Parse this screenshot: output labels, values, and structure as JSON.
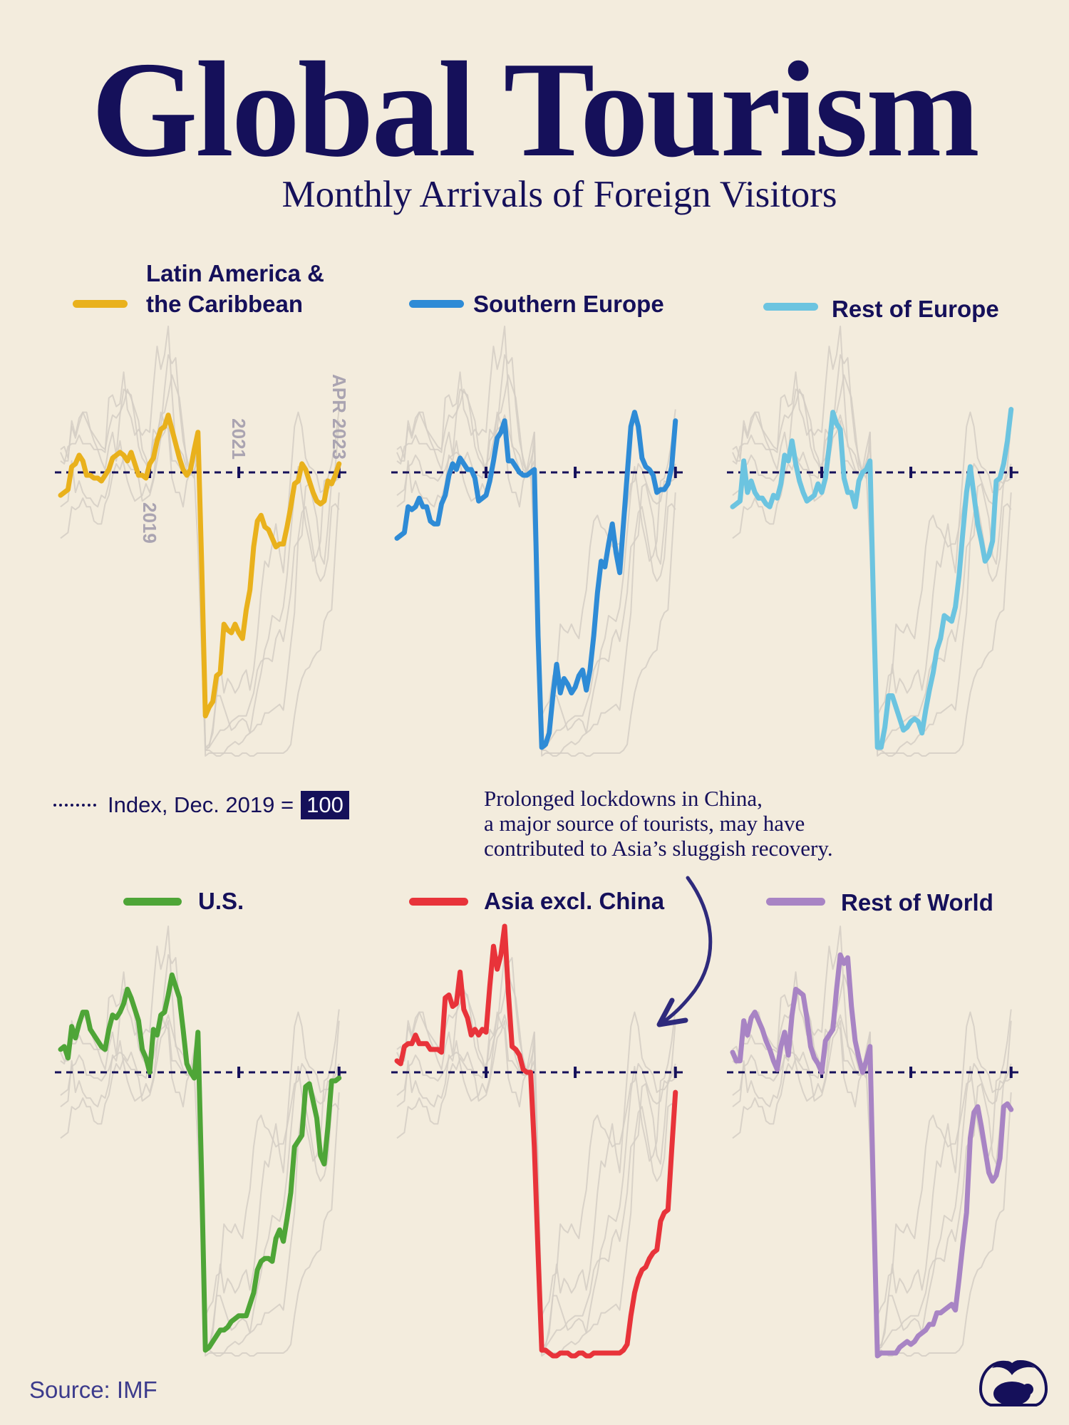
{
  "header": {
    "title": "Global Tourism",
    "subtitle": "Monthly Arrivals of Foreign Visitors"
  },
  "index_note": {
    "label": "Index, Dec. 2019 =",
    "value": "100"
  },
  "annotation": {
    "lines": [
      "Prolonged lockdowns in China,",
      "a major source of tourists, may have",
      "contributed to Asia’s sluggish recovery."
    ]
  },
  "source": "Source: IMF",
  "colors": {
    "background": "#f3ecdd",
    "ink": "#15105a",
    "context_lines": "#d3cec4"
  },
  "chart_data": {
    "type": "line",
    "layout": "small-multiples-2x3",
    "baseline": 100,
    "baseline_style": "dashed",
    "ylim": [
      0,
      155
    ],
    "tick_labels": [
      "2019",
      "2021",
      "APR 2023"
    ],
    "tick_dates": [
      "2019-01",
      "2021-01",
      "2023-04"
    ],
    "grid": false,
    "x": [
      "2017-01",
      "2017-02",
      "2017-03",
      "2017-04",
      "2017-05",
      "2017-06",
      "2017-07",
      "2017-08",
      "2017-09",
      "2017-10",
      "2017-11",
      "2017-12",
      "2018-01",
      "2018-02",
      "2018-03",
      "2018-04",
      "2018-05",
      "2018-06",
      "2018-07",
      "2018-08",
      "2018-09",
      "2018-10",
      "2018-11",
      "2018-12",
      "2019-01",
      "2019-02",
      "2019-03",
      "2019-04",
      "2019-05",
      "2019-06",
      "2019-07",
      "2019-08",
      "2019-09",
      "2019-10",
      "2019-11",
      "2019-12",
      "2020-01",
      "2020-02",
      "2020-03",
      "2020-04",
      "2020-05",
      "2020-06",
      "2020-07",
      "2020-08",
      "2020-09",
      "2020-10",
      "2020-11",
      "2020-12",
      "2021-01",
      "2021-02",
      "2021-03",
      "2021-04",
      "2021-05",
      "2021-06",
      "2021-07",
      "2021-08",
      "2021-09",
      "2021-10",
      "2021-11",
      "2021-12",
      "2022-01",
      "2022-02",
      "2022-03",
      "2022-04",
      "2022-05",
      "2022-06",
      "2022-07",
      "2022-08",
      "2022-09",
      "2022-10",
      "2022-11",
      "2022-12",
      "2023-01",
      "2023-02",
      "2023-03",
      "2023-04"
    ],
    "series": [
      {
        "name": "Latin America & the Caribbean",
        "color": "#e9b11c",
        "values": [
          92,
          93,
          94,
          102,
          103,
          106,
          104,
          99,
          99,
          98,
          98,
          97,
          99,
          101,
          105,
          106,
          107,
          106,
          104,
          107,
          103,
          99,
          99,
          98,
          103,
          105,
          111,
          115,
          116,
          120,
          115,
          110,
          105,
          101,
          99,
          101,
          108,
          114,
          68,
          15,
          18,
          20,
          29,
          30,
          47,
          45,
          44,
          47,
          44,
          42,
          52,
          59,
          74,
          83,
          85,
          81,
          80,
          77,
          74,
          75,
          75,
          81,
          88,
          96,
          97,
          103,
          101,
          97,
          93,
          90,
          89,
          90,
          97,
          96,
          99,
          103
        ]
      },
      {
        "name": "Southern Europe",
        "color": "#2e8bd6",
        "values": [
          77,
          78,
          79,
          88,
          87,
          88,
          91,
          88,
          88,
          83,
          82,
          82,
          89,
          92,
          99,
          103,
          101,
          105,
          103,
          101,
          101,
          98,
          90,
          91,
          92,
          97,
          104,
          112,
          114,
          118,
          104,
          104,
          102,
          100,
          99,
          99,
          100,
          101,
          43,
          4,
          5,
          9,
          22,
          33,
          23,
          28,
          26,
          23,
          25,
          29,
          31,
          24,
          31,
          43,
          58,
          69,
          67,
          75,
          82,
          72,
          65,
          82,
          99,
          116,
          121,
          116,
          105,
          102,
          101,
          99,
          93,
          94,
          94,
          96,
          102,
          118
        ]
      },
      {
        "name": "Rest of Europe",
        "color": "#6cc4e0",
        "values": [
          88,
          89,
          90,
          104,
          93,
          97,
          93,
          91,
          91,
          89,
          88,
          92,
          91,
          96,
          106,
          104,
          111,
          103,
          97,
          93,
          90,
          91,
          92,
          96,
          93,
          98,
          109,
          121,
          117,
          115,
          98,
          93,
          93,
          88,
          97,
          100,
          101,
          104,
          51,
          4,
          4,
          11,
          22,
          22,
          18,
          14,
          10,
          11,
          13,
          14,
          13,
          9,
          17,
          24,
          30,
          38,
          42,
          50,
          49,
          48,
          53,
          64,
          79,
          93,
          102,
          92,
          82,
          76,
          69,
          71,
          76,
          97,
          98,
          103,
          111,
          122
        ]
      },
      {
        "name": "U.S.",
        "color": "#4ea537",
        "values": [
          108,
          109,
          105,
          116,
          112,
          117,
          121,
          121,
          115,
          113,
          111,
          109,
          108,
          115,
          120,
          119,
          121,
          124,
          129,
          126,
          122,
          118,
          108,
          105,
          100,
          115,
          113,
          120,
          121,
          127,
          134,
          130,
          126,
          115,
          103,
          100,
          98,
          114,
          63,
          3,
          4,
          6,
          8,
          10,
          10,
          11,
          13,
          14,
          15,
          15,
          15,
          19,
          23,
          31,
          34,
          35,
          35,
          34,
          42,
          45,
          41,
          49,
          58,
          74,
          76,
          78,
          95,
          96,
          90,
          84,
          71,
          68,
          81,
          97,
          97,
          98
        ]
      },
      {
        "name": "Asia excl. China",
        "color": "#e8333a",
        "values": [
          104,
          103,
          109,
          110,
          110,
          113,
          110,
          110,
          110,
          108,
          108,
          108,
          107,
          126,
          127,
          123,
          124,
          135,
          122,
          119,
          113,
          115,
          113,
          115,
          114,
          130,
          144,
          136,
          141,
          151,
          128,
          109,
          108,
          106,
          101,
          100,
          100,
          74,
          37,
          3,
          3,
          2,
          1,
          1,
          2,
          2,
          2,
          1,
          1,
          2,
          2,
          1,
          1,
          2,
          2,
          2,
          2,
          2,
          2,
          2,
          2,
          3,
          5,
          15,
          23,
          28,
          31,
          32,
          35,
          37,
          38,
          48,
          51,
          52,
          73,
          93
        ]
      },
      {
        "name": "Rest of World",
        "color": "#a884c4",
        "values": [
          107,
          104,
          104,
          118,
          113,
          119,
          121,
          118,
          115,
          111,
          108,
          104,
          101,
          109,
          114,
          106,
          120,
          129,
          128,
          127,
          119,
          109,
          105,
          103,
          100,
          111,
          113,
          115,
          129,
          141,
          138,
          140,
          123,
          111,
          105,
          100,
          104,
          109,
          53,
          1,
          2,
          2,
          2,
          2,
          2,
          4,
          5,
          6,
          5,
          6,
          8,
          9,
          10,
          12,
          12,
          16,
          16,
          17,
          18,
          19,
          17,
          28,
          40,
          51,
          77,
          86,
          88,
          81,
          73,
          65,
          62,
          64,
          70,
          88,
          89,
          87
        ]
      }
    ]
  }
}
